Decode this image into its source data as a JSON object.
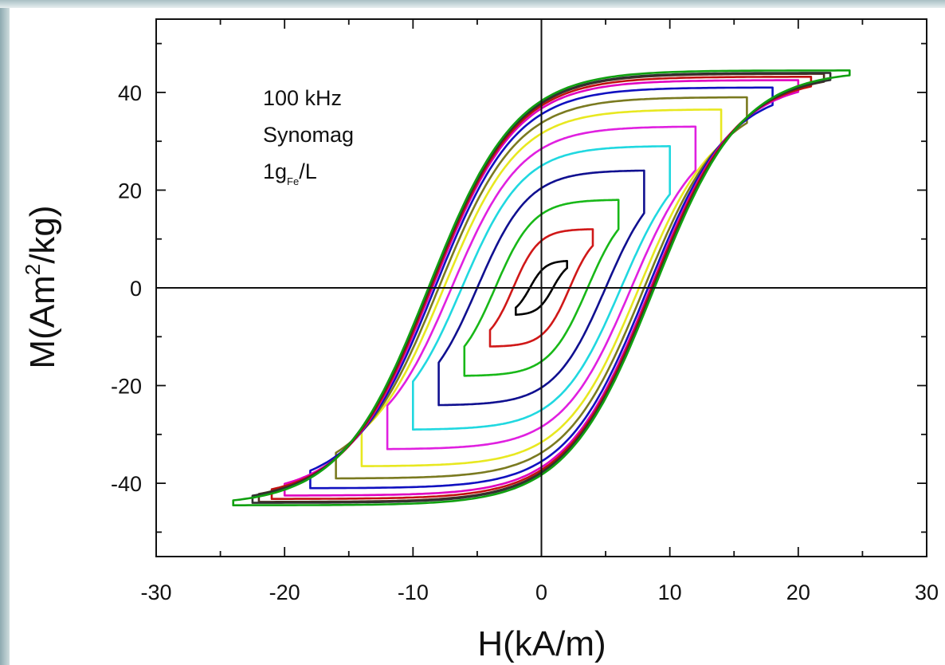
{
  "chart_data": {
    "type": "line",
    "xlabel_main": "H(kA/m)",
    "ylabel_parts": {
      "pre": "M(Am",
      "sup": "2",
      "post": "/kg)"
    },
    "xlim": [
      -30,
      30
    ],
    "ylim": [
      -55,
      55
    ],
    "x_ticks": [
      "-30",
      "-20",
      "-10",
      "0",
      "10",
      "20",
      "30"
    ],
    "y_ticks": [
      "-40",
      "-20",
      "0",
      "20",
      "40"
    ],
    "annotation": {
      "line1": "100 kHz",
      "line2": "Synomag",
      "line3_main": "1g",
      "line3_sub": "Fe",
      "line3_tail": "/L"
    },
    "series": [
      {
        "color": "#000000",
        "Hmax": 2.0,
        "Mmax": 5.5,
        "Hc": 0.9,
        "Mr": 3.0,
        "s": 1.2
      },
      {
        "color": "#d01818",
        "Hmax": 4.0,
        "Mmax": 12.0,
        "Hc": 2.2,
        "Mr": 7.0,
        "s": 2.0
      },
      {
        "color": "#18b818",
        "Hmax": 6.0,
        "Mmax": 18.0,
        "Hc": 3.6,
        "Mr": 12.0,
        "s": 3.0
      },
      {
        "color": "#101090",
        "Hmax": 8.0,
        "Mmax": 24.0,
        "Hc": 5.0,
        "Mr": 17.5,
        "s": 4.0
      },
      {
        "color": "#20d8e0",
        "Hmax": 10.0,
        "Mmax": 29.0,
        "Hc": 6.2,
        "Mr": 23.0,
        "s": 4.8
      },
      {
        "color": "#e020e0",
        "Hmax": 12.0,
        "Mmax": 33.0,
        "Hc": 7.0,
        "Mr": 27.0,
        "s": 5.4
      },
      {
        "color": "#e8e820",
        "Hmax": 14.0,
        "Mmax": 36.5,
        "Hc": 7.6,
        "Mr": 30.0,
        "s": 5.8
      },
      {
        "color": "#7a7a20",
        "Hmax": 16.0,
        "Mmax": 39.0,
        "Hc": 8.0,
        "Mr": 32.0,
        "s": 6.1
      },
      {
        "color": "#1010c0",
        "Hmax": 18.0,
        "Mmax": 41.0,
        "Hc": 8.3,
        "Mr": 33.5,
        "s": 6.3
      },
      {
        "color": "#e000c0",
        "Hmax": 20.0,
        "Mmax": 42.5,
        "Hc": 8.5,
        "Mr": 34.2,
        "s": 6.5
      },
      {
        "color": "#c01010",
        "Hmax": 21.0,
        "Mmax": 43.2,
        "Hc": 8.6,
        "Mr": 34.6,
        "s": 6.6
      },
      {
        "color": "#503020",
        "Hmax": 22.0,
        "Mmax": 43.8,
        "Hc": 8.7,
        "Mr": 34.9,
        "s": 6.7
      },
      {
        "color": "#303030",
        "Hmax": 22.5,
        "Mmax": 44.0,
        "Hc": 8.75,
        "Mr": 35.0,
        "s": 6.75
      },
      {
        "color": "#10a010",
        "Hmax": 24.0,
        "Mmax": 44.5,
        "Hc": 8.8,
        "Mr": 35.2,
        "s": 6.8
      }
    ]
  }
}
